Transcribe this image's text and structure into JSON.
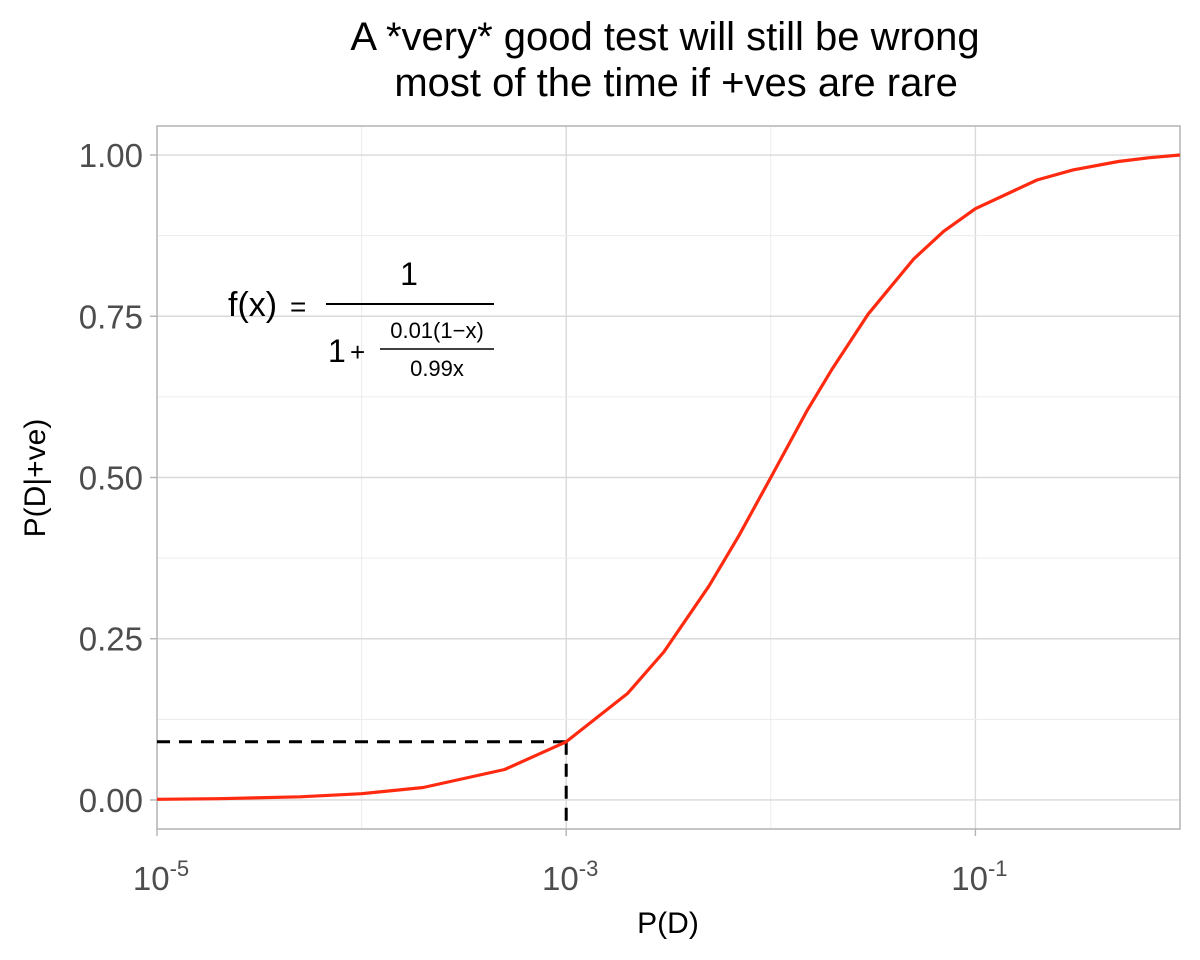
{
  "chart_data": {
    "type": "line",
    "title": "A *very* good test will still be wrong\n  most of the time if +ves are rare",
    "title_lines": [
      "A *very* good test will still be wrong",
      "  most of the time if +ves are rare"
    ],
    "xlabel": "P(D)",
    "ylabel": "P(D|+ve)",
    "x_scale": "log10",
    "xlim": [
      1e-05,
      1
    ],
    "ylim": [
      -0.045,
      1.045
    ],
    "x_ticks": [
      {
        "base": "10",
        "exp": "-5",
        "value": 1e-05
      },
      {
        "base": "10",
        "exp": "-3",
        "value": 0.001
      },
      {
        "base": "10",
        "exp": "-1",
        "value": 0.1
      }
    ],
    "y_ticks": [
      "0.00",
      "0.25",
      "0.50",
      "0.75",
      "1.00"
    ],
    "y_tick_values": [
      0,
      0.25,
      0.5,
      0.75,
      1.0
    ],
    "grid": true,
    "series": [
      {
        "color": "#ff2a0f",
        "x": [
          1e-05,
          2e-05,
          5e-05,
          0.0001,
          0.0002,
          0.0005,
          0.001,
          0.002,
          0.003,
          0.005,
          0.007,
          0.01,
          0.015,
          0.02,
          0.03,
          0.05,
          0.07,
          0.1,
          0.2,
          0.3,
          0.5,
          0.7,
          1.0
        ],
        "y": [
          0.001,
          0.002,
          0.005,
          0.0098,
          0.0194,
          0.0472,
          0.0902,
          0.1655,
          0.2295,
          0.3322,
          0.4104,
          0.5,
          0.603,
          0.6689,
          0.7538,
          0.839,
          0.8817,
          0.9167,
          0.9612,
          0.977,
          0.99,
          0.9957,
          1.0
        ]
      }
    ],
    "annotations": {
      "dashed_guide": {
        "x": 0.001,
        "y": 0.0902,
        "color": "#000000"
      },
      "formula": {
        "lhs": "f(x)",
        "equals": "=",
        "numerator": "1",
        "denominator_lead": "1",
        "plus": "+",
        "inner_numerator": "0.01(1−x)",
        "inner_denominator": "0.99x"
      }
    }
  }
}
